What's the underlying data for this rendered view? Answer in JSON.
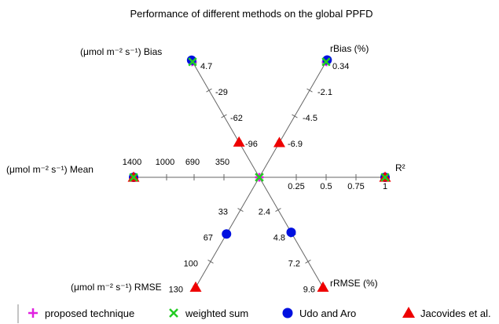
{
  "chart_data": {
    "type": "scatter",
    "subtype": "radial-star",
    "title": "Performance of different methods on the global PPFD",
    "axes": [
      {
        "key": "mean",
        "label": "(μmol m⁻² s⁻¹) Mean",
        "direction": "left",
        "ticks": [
          "1400",
          "1000",
          "690",
          "350"
        ]
      },
      {
        "key": "r2",
        "label": "R²",
        "direction": "right",
        "ticks": [
          "0.25",
          "0.5",
          "0.75",
          "1"
        ]
      },
      {
        "key": "bias",
        "label": "(μmol m⁻² s⁻¹) Bias",
        "direction": "upper-left",
        "ticks": [
          "4.7",
          "-29",
          "-62",
          "-96"
        ]
      },
      {
        "key": "rbias",
        "label": "rBias (%)",
        "direction": "upper-right",
        "ticks": [
          "0.34",
          "-2.1",
          "-4.5",
          "-6.9"
        ]
      },
      {
        "key": "rmse",
        "label": "(μmol m⁻² s⁻¹) RMSE",
        "direction": "lower-left",
        "ticks": [
          "130",
          "100",
          "67",
          "33"
        ]
      },
      {
        "key": "rrmse",
        "label": "rRMSE (%)",
        "direction": "lower-right",
        "ticks": [
          "9.6",
          "7.2",
          "4.8",
          "2.4"
        ]
      }
    ],
    "series": [
      {
        "name": "proposed technique",
        "marker": "plus",
        "color": "#e020e0",
        "values": {
          "mean": 1400,
          "r2": 1.0,
          "bias": 4.7,
          "rbias": 0.34,
          "rmse": 0,
          "rrmse": 0
        }
      },
      {
        "name": "weighted sum",
        "marker": "cross",
        "color": "#22cc22",
        "values": {
          "mean": 1400,
          "r2": 1.0,
          "bias": 4.7,
          "rbias": 0.34,
          "rmse": 0,
          "rrmse": 0
        }
      },
      {
        "name": "Udo and Aro",
        "marker": "circle",
        "color": "#0010e0",
        "values": {
          "mean": 1400,
          "r2": 1.0,
          "bias": 6.7,
          "rbias": 0.5,
          "rmse": 67,
          "rrmse": 4.8
        }
      },
      {
        "name": "Jacovides et al.",
        "marker": "triangle",
        "color": "#ee0000",
        "values": {
          "mean": 1400,
          "r2": 1.0,
          "bias": -96,
          "rbias": -6.9,
          "rmse": 130,
          "rrmse": 9.6
        }
      }
    ]
  }
}
